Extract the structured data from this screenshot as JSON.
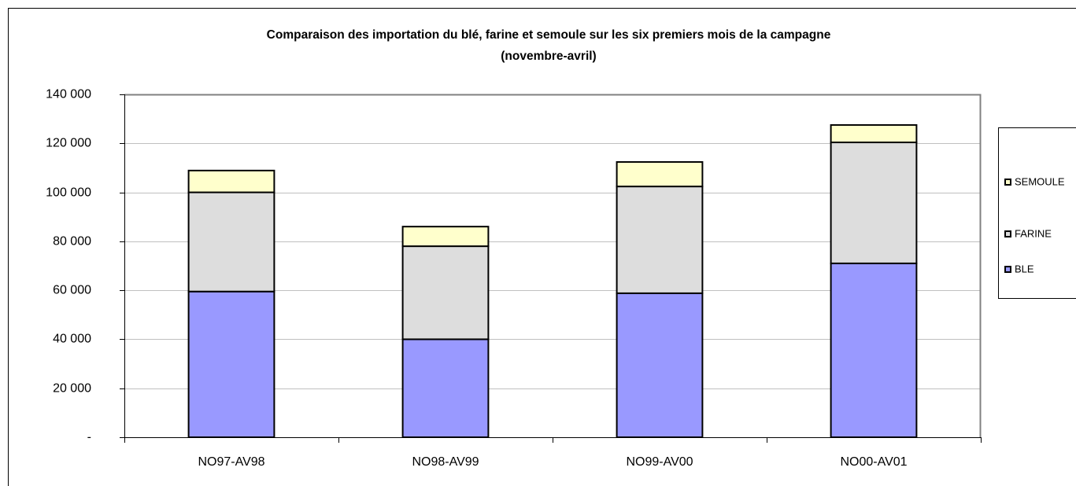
{
  "chart_data": {
    "type": "stacked_bar",
    "title": "Comparaison des importation du blé, farine et semoule sur les six premiers mois de la campagne",
    "subtitle": "(novembre-avril)",
    "categories": [
      "NO97-AV98",
      "NO98-AV99",
      "NO99-AV00",
      "NO00-AV01"
    ],
    "series": [
      {
        "name": "BLE",
        "color": "#9999ff",
        "values": [
          59500,
          40000,
          58800,
          71000
        ]
      },
      {
        "name": "FARINE",
        "color": "#dddddd",
        "values": [
          40500,
          38000,
          43600,
          49400
        ]
      },
      {
        "name": "SEMOULE",
        "color": "#ffffcc",
        "values": [
          8900,
          8000,
          10000,
          7100
        ]
      }
    ],
    "ylim": [
      0,
      140000
    ],
    "yticks": [
      {
        "value": 0,
        "label": "-"
      },
      {
        "value": 20000,
        "label": "20 000"
      },
      {
        "value": 40000,
        "label": "40 000"
      },
      {
        "value": 60000,
        "label": "60 000"
      },
      {
        "value": 80000,
        "label": "80 000"
      },
      {
        "value": 100000,
        "label": "100 000"
      },
      {
        "value": 120000,
        "label": "120 000"
      },
      {
        "value": 140000,
        "label": "140 000"
      }
    ],
    "grid": true,
    "legend": "right"
  }
}
